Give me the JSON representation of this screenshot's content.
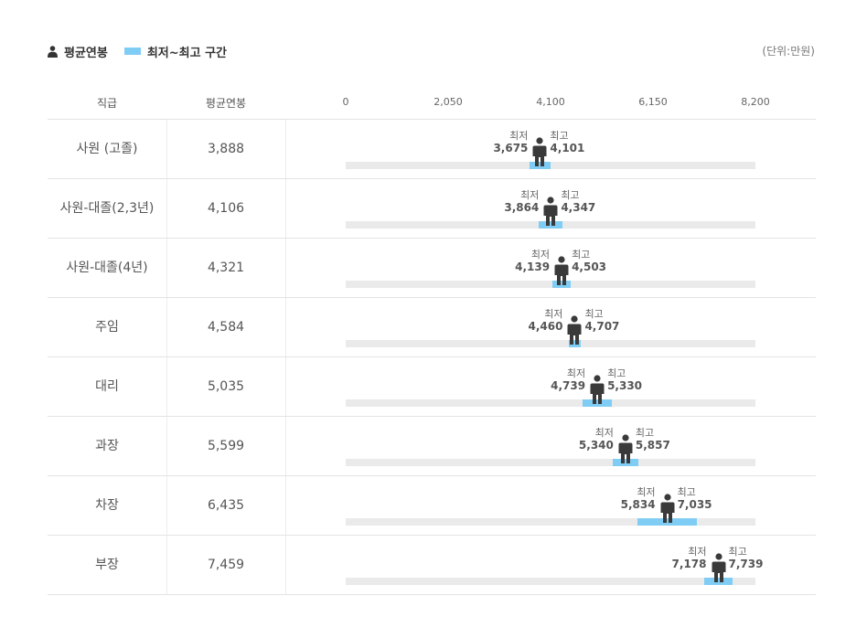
{
  "legend": {
    "avg_label": "평균연봉",
    "range_label": "최저~최고 구간",
    "avg_icon": "person-icon",
    "range_color": "#7fcdf4"
  },
  "unit_label": "(단위:만원)",
  "header": {
    "job_label": "직급",
    "avg_label": "평균연봉"
  },
  "min_word": "최저",
  "max_word": "최고",
  "chart_data": {
    "type": "range-bar",
    "xlim": [
      0,
      8200
    ],
    "ticks": [
      0,
      2050,
      4100,
      6150,
      8200
    ],
    "tick_labels": [
      "0",
      "2,050",
      "4,100",
      "6,150",
      "8,200"
    ],
    "rows": [
      {
        "job": "사원 (고졸)",
        "avg": 3888,
        "avg_label": "3,888",
        "min": 3675,
        "min_label": "3,675",
        "max": 4101,
        "max_label": "4,101"
      },
      {
        "job": "사원-대졸(2,3년)",
        "avg": 4106,
        "avg_label": "4,106",
        "min": 3864,
        "min_label": "3,864",
        "max": 4347,
        "max_label": "4,347"
      },
      {
        "job": "사원-대졸(4년)",
        "avg": 4321,
        "avg_label": "4,321",
        "min": 4139,
        "min_label": "4,139",
        "max": 4503,
        "max_label": "4,503"
      },
      {
        "job": "주임",
        "avg": 4584,
        "avg_label": "4,584",
        "min": 4460,
        "min_label": "4,460",
        "max": 4707,
        "max_label": "4,707"
      },
      {
        "job": "대리",
        "avg": 5035,
        "avg_label": "5,035",
        "min": 4739,
        "min_label": "4,739",
        "max": 5330,
        "max_label": "5,330"
      },
      {
        "job": "과장",
        "avg": 5599,
        "avg_label": "5,599",
        "min": 5340,
        "min_label": "5,340",
        "max": 5857,
        "max_label": "5,857"
      },
      {
        "job": "차장",
        "avg": 6435,
        "avg_label": "6,435",
        "min": 5834,
        "min_label": "5,834",
        "max": 7035,
        "max_label": "7,035"
      },
      {
        "job": "부장",
        "avg": 7459,
        "avg_label": "7,459",
        "min": 7178,
        "min_label": "7,178",
        "max": 7739,
        "max_label": "7,739"
      }
    ]
  }
}
